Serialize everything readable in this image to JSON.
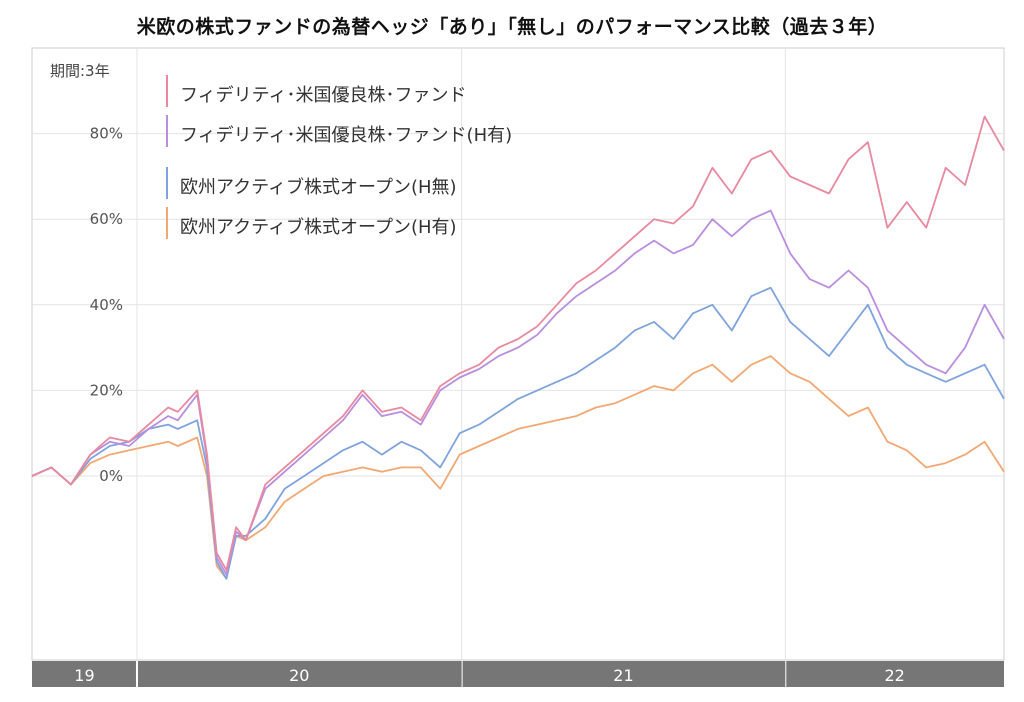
{
  "chart_data": {
    "type": "line",
    "title": "米欧の株式ファンドの為替ヘッジ「あり」「無し」のパフォーマンス比較（過去３年）",
    "period_label": "期間:3年",
    "ylabel": "",
    "xlabel": "",
    "y_ticks": [
      "80%",
      "60%",
      "40%",
      "20%",
      "0%"
    ],
    "y_tick_values": [
      80,
      60,
      40,
      20,
      0
    ],
    "ylim": [
      -43,
      100
    ],
    "x_year_labels": [
      "19",
      "20",
      "21",
      "22"
    ],
    "x_range": [
      "2019-06",
      "2022-06"
    ],
    "grid": true,
    "legend_position": "top-left",
    "series": [
      {
        "name": "フィデリティ･米国優良株･ファンド",
        "color": "#e8899f",
        "points": [
          [
            0,
            0
          ],
          [
            2,
            2
          ],
          [
            4,
            -2
          ],
          [
            6,
            5
          ],
          [
            8,
            9
          ],
          [
            10,
            8
          ],
          [
            12,
            12
          ],
          [
            14,
            16
          ],
          [
            15,
            15
          ],
          [
            17,
            20
          ],
          [
            18,
            5
          ],
          [
            19,
            -18
          ],
          [
            20,
            -22
          ],
          [
            21,
            -12
          ],
          [
            22,
            -15
          ],
          [
            24,
            -2
          ],
          [
            26,
            2
          ],
          [
            28,
            6
          ],
          [
            30,
            10
          ],
          [
            32,
            14
          ],
          [
            34,
            20
          ],
          [
            36,
            15
          ],
          [
            38,
            16
          ],
          [
            40,
            13
          ],
          [
            42,
            21
          ],
          [
            44,
            24
          ],
          [
            46,
            26
          ],
          [
            48,
            30
          ],
          [
            50,
            32
          ],
          [
            52,
            35
          ],
          [
            54,
            40
          ],
          [
            56,
            45
          ],
          [
            58,
            48
          ],
          [
            60,
            52
          ],
          [
            62,
            56
          ],
          [
            64,
            60
          ],
          [
            66,
            59
          ],
          [
            68,
            63
          ],
          [
            70,
            72
          ],
          [
            72,
            66
          ],
          [
            74,
            74
          ],
          [
            76,
            76
          ],
          [
            78,
            70
          ],
          [
            80,
            68
          ],
          [
            82,
            66
          ],
          [
            84,
            74
          ],
          [
            86,
            78
          ],
          [
            88,
            58
          ],
          [
            90,
            64
          ],
          [
            92,
            58
          ],
          [
            94,
            72
          ],
          [
            96,
            68
          ],
          [
            98,
            84
          ],
          [
            100,
            76
          ]
        ]
      },
      {
        "name": "フィデリティ･米国優良株･ファンド(H有)",
        "color": "#b98ee0",
        "points": [
          [
            0,
            0
          ],
          [
            2,
            2
          ],
          [
            4,
            -2
          ],
          [
            6,
            5
          ],
          [
            8,
            8
          ],
          [
            10,
            7
          ],
          [
            12,
            11
          ],
          [
            14,
            14
          ],
          [
            15,
            13
          ],
          [
            17,
            19
          ],
          [
            18,
            4
          ],
          [
            19,
            -19
          ],
          [
            20,
            -23
          ],
          [
            21,
            -13
          ],
          [
            22,
            -15
          ],
          [
            24,
            -3
          ],
          [
            26,
            1
          ],
          [
            28,
            5
          ],
          [
            30,
            9
          ],
          [
            32,
            13
          ],
          [
            34,
            19
          ],
          [
            36,
            14
          ],
          [
            38,
            15
          ],
          [
            40,
            12
          ],
          [
            42,
            20
          ],
          [
            44,
            23
          ],
          [
            46,
            25
          ],
          [
            48,
            28
          ],
          [
            50,
            30
          ],
          [
            52,
            33
          ],
          [
            54,
            38
          ],
          [
            56,
            42
          ],
          [
            58,
            45
          ],
          [
            60,
            48
          ],
          [
            62,
            52
          ],
          [
            64,
            55
          ],
          [
            66,
            52
          ],
          [
            68,
            54
          ],
          [
            70,
            60
          ],
          [
            72,
            56
          ],
          [
            74,
            60
          ],
          [
            76,
            62
          ],
          [
            78,
            52
          ],
          [
            80,
            46
          ],
          [
            82,
            44
          ],
          [
            84,
            48
          ],
          [
            86,
            44
          ],
          [
            88,
            34
          ],
          [
            90,
            30
          ],
          [
            92,
            26
          ],
          [
            94,
            24
          ],
          [
            96,
            30
          ],
          [
            98,
            40
          ],
          [
            100,
            32
          ]
        ]
      },
      {
        "name": "欧州アクティブ株式オープン(H無)",
        "color": "#7fa3dd",
        "points": [
          [
            0,
            0
          ],
          [
            2,
            2
          ],
          [
            4,
            -2
          ],
          [
            6,
            4
          ],
          [
            8,
            7
          ],
          [
            10,
            8
          ],
          [
            12,
            11
          ],
          [
            14,
            12
          ],
          [
            15,
            11
          ],
          [
            17,
            13
          ],
          [
            18,
            2
          ],
          [
            19,
            -20
          ],
          [
            20,
            -24
          ],
          [
            21,
            -14
          ],
          [
            22,
            -14
          ],
          [
            24,
            -10
          ],
          [
            26,
            -3
          ],
          [
            28,
            0
          ],
          [
            30,
            3
          ],
          [
            32,
            6
          ],
          [
            34,
            8
          ],
          [
            36,
            5
          ],
          [
            38,
            8
          ],
          [
            40,
            6
          ],
          [
            42,
            2
          ],
          [
            44,
            10
          ],
          [
            46,
            12
          ],
          [
            48,
            15
          ],
          [
            50,
            18
          ],
          [
            52,
            20
          ],
          [
            54,
            22
          ],
          [
            56,
            24
          ],
          [
            58,
            27
          ],
          [
            60,
            30
          ],
          [
            62,
            34
          ],
          [
            64,
            36
          ],
          [
            66,
            32
          ],
          [
            68,
            38
          ],
          [
            70,
            40
          ],
          [
            72,
            34
          ],
          [
            74,
            42
          ],
          [
            76,
            44
          ],
          [
            78,
            36
          ],
          [
            80,
            32
          ],
          [
            82,
            28
          ],
          [
            84,
            34
          ],
          [
            86,
            40
          ],
          [
            88,
            30
          ],
          [
            90,
            26
          ],
          [
            92,
            24
          ],
          [
            94,
            22
          ],
          [
            96,
            24
          ],
          [
            98,
            26
          ],
          [
            100,
            18
          ]
        ]
      },
      {
        "name": "欧州アクティブ株式オープン(H有)",
        "color": "#f2a873",
        "points": [
          [
            0,
            0
          ],
          [
            2,
            2
          ],
          [
            4,
            -2
          ],
          [
            6,
            3
          ],
          [
            8,
            5
          ],
          [
            10,
            6
          ],
          [
            12,
            7
          ],
          [
            14,
            8
          ],
          [
            15,
            7
          ],
          [
            17,
            9
          ],
          [
            18,
            0
          ],
          [
            19,
            -21
          ],
          [
            20,
            -24
          ],
          [
            21,
            -14
          ],
          [
            22,
            -15
          ],
          [
            24,
            -12
          ],
          [
            26,
            -6
          ],
          [
            28,
            -3
          ],
          [
            30,
            0
          ],
          [
            32,
            1
          ],
          [
            34,
            2
          ],
          [
            36,
            1
          ],
          [
            38,
            2
          ],
          [
            40,
            2
          ],
          [
            42,
            -3
          ],
          [
            44,
            5
          ],
          [
            46,
            7
          ],
          [
            48,
            9
          ],
          [
            50,
            11
          ],
          [
            52,
            12
          ],
          [
            54,
            13
          ],
          [
            56,
            14
          ],
          [
            58,
            16
          ],
          [
            60,
            17
          ],
          [
            62,
            19
          ],
          [
            64,
            21
          ],
          [
            66,
            20
          ],
          [
            68,
            24
          ],
          [
            70,
            26
          ],
          [
            72,
            22
          ],
          [
            74,
            26
          ],
          [
            76,
            28
          ],
          [
            78,
            24
          ],
          [
            80,
            22
          ],
          [
            82,
            18
          ],
          [
            84,
            14
          ],
          [
            86,
            16
          ],
          [
            88,
            8
          ],
          [
            90,
            6
          ],
          [
            92,
            2
          ],
          [
            94,
            3
          ],
          [
            96,
            5
          ],
          [
            98,
            8
          ],
          [
            100,
            1
          ]
        ]
      }
    ]
  }
}
